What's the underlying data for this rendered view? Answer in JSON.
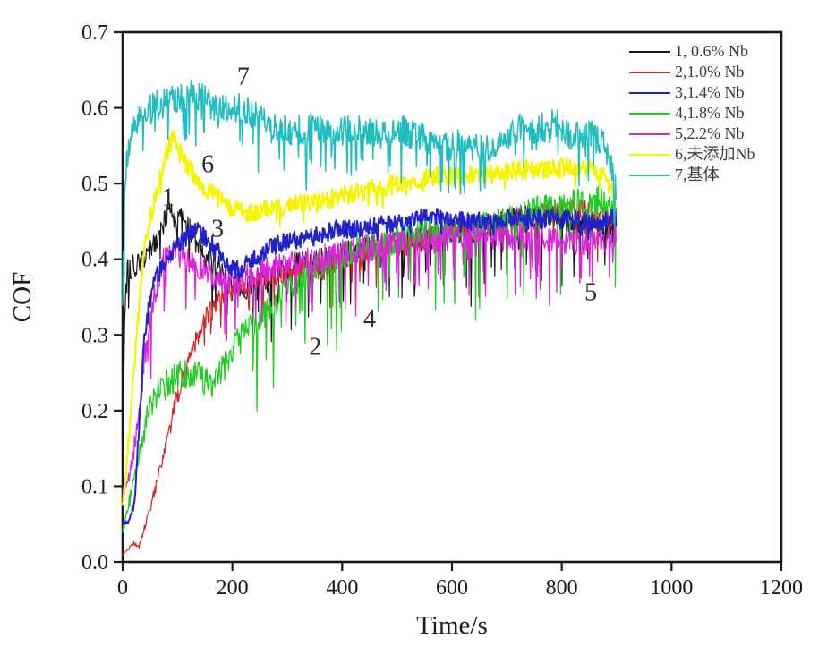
{
  "chart_data": {
    "type": "line",
    "title": "",
    "xlabel": "Time/s",
    "ylabel": "COF",
    "xlim": [
      0,
      1200
    ],
    "ylim": [
      0.0,
      0.7
    ],
    "x_ticks": [
      "0",
      "200",
      "400",
      "600",
      "800",
      "1000",
      "1200"
    ],
    "y_ticks": [
      "0.0",
      "0.1",
      "0.2",
      "0.3",
      "0.4",
      "0.5",
      "0.6",
      "0.7"
    ],
    "grid": false,
    "legend_position": "top-right-inside",
    "frame_color": "#1a1a1a",
    "background_color": "#ffffff",
    "time_end_s": 900,
    "series": [
      {
        "number": "1",
        "name": "1, 0.6% Nb",
        "color": "#1a1a1a",
        "annotation": {
          "text": "1",
          "t": 83,
          "cof": 0.471
        },
        "noise": {
          "amp": 0.018,
          "spike": 0.09,
          "spike_prob": 0.1,
          "seed": 101
        },
        "trend": [
          [
            0,
            0.08
          ],
          [
            3,
            0.3
          ],
          [
            8,
            0.385
          ],
          [
            20,
            0.395
          ],
          [
            40,
            0.4
          ],
          [
            60,
            0.425
          ],
          [
            75,
            0.45
          ],
          [
            90,
            0.46
          ],
          [
            105,
            0.455
          ],
          [
            120,
            0.44
          ],
          [
            140,
            0.42
          ],
          [
            160,
            0.4
          ],
          [
            180,
            0.385
          ],
          [
            200,
            0.37
          ],
          [
            220,
            0.365
          ],
          [
            240,
            0.37
          ],
          [
            270,
            0.38
          ],
          [
            300,
            0.39
          ],
          [
            340,
            0.395
          ],
          [
            380,
            0.4
          ],
          [
            420,
            0.41
          ],
          [
            460,
            0.415
          ],
          [
            500,
            0.42
          ],
          [
            540,
            0.425
          ],
          [
            580,
            0.43
          ],
          [
            620,
            0.435
          ],
          [
            660,
            0.44
          ],
          [
            700,
            0.45
          ],
          [
            740,
            0.455
          ],
          [
            780,
            0.46
          ],
          [
            820,
            0.45
          ],
          [
            850,
            0.445
          ],
          [
            880,
            0.44
          ],
          [
            900,
            0.43
          ]
        ]
      },
      {
        "number": "2",
        "name": "2,1.0% Nb",
        "color": "#d42525",
        "annotation": {
          "text": "2",
          "t": 351,
          "cof": 0.274
        },
        "noise": {
          "amp": 0.014,
          "spike": 0.06,
          "spike_prob": 0.06,
          "seed": 202
        },
        "trend": [
          [
            0,
            0.01
          ],
          [
            20,
            0.025
          ],
          [
            30,
            0.02
          ],
          [
            50,
            0.07
          ],
          [
            75,
            0.14
          ],
          [
            100,
            0.22
          ],
          [
            125,
            0.28
          ],
          [
            150,
            0.32
          ],
          [
            175,
            0.35
          ],
          [
            200,
            0.36
          ],
          [
            230,
            0.37
          ],
          [
            260,
            0.375
          ],
          [
            300,
            0.385
          ],
          [
            340,
            0.39
          ],
          [
            370,
            0.385
          ],
          [
            400,
            0.4
          ],
          [
            440,
            0.41
          ],
          [
            480,
            0.415
          ],
          [
            520,
            0.42
          ],
          [
            560,
            0.43
          ],
          [
            600,
            0.44
          ],
          [
            640,
            0.445
          ],
          [
            680,
            0.45
          ],
          [
            720,
            0.455
          ],
          [
            760,
            0.46
          ],
          [
            800,
            0.465
          ],
          [
            840,
            0.465
          ],
          [
            870,
            0.46
          ],
          [
            900,
            0.455
          ]
        ]
      },
      {
        "number": "3",
        "name": "3,1.4% Nb",
        "color": "#2222cc",
        "annotation": {
          "text": "3",
          "t": 173,
          "cof": 0.43
        },
        "noise": {
          "amp": 0.012,
          "spike": 0.015,
          "spike_prob": 0.05,
          "seed": 303
        },
        "trend": [
          [
            0,
            0.05
          ],
          [
            12,
            0.055
          ],
          [
            22,
            0.08
          ],
          [
            30,
            0.18
          ],
          [
            38,
            0.28
          ],
          [
            48,
            0.34
          ],
          [
            60,
            0.375
          ],
          [
            80,
            0.4
          ],
          [
            100,
            0.42
          ],
          [
            120,
            0.43
          ],
          [
            135,
            0.44
          ],
          [
            155,
            0.425
          ],
          [
            175,
            0.41
          ],
          [
            195,
            0.39
          ],
          [
            205,
            0.385
          ],
          [
            220,
            0.39
          ],
          [
            240,
            0.4
          ],
          [
            260,
            0.41
          ],
          [
            280,
            0.42
          ],
          [
            310,
            0.425
          ],
          [
            350,
            0.43
          ],
          [
            390,
            0.44
          ],
          [
            430,
            0.44
          ],
          [
            470,
            0.445
          ],
          [
            510,
            0.45
          ],
          [
            550,
            0.455
          ],
          [
            590,
            0.455
          ],
          [
            630,
            0.45
          ],
          [
            670,
            0.45
          ],
          [
            710,
            0.455
          ],
          [
            750,
            0.455
          ],
          [
            790,
            0.455
          ],
          [
            830,
            0.45
          ],
          [
            870,
            0.45
          ],
          [
            900,
            0.455
          ]
        ]
      },
      {
        "number": "4",
        "name": "4,1.8% Nb",
        "color": "#22cc22",
        "annotation": {
          "text": "4",
          "t": 450,
          "cof": 0.311
        },
        "noise": {
          "amp": 0.02,
          "spike": 0.12,
          "spike_prob": 0.1,
          "seed": 404
        },
        "trend": [
          [
            0,
            0.04
          ],
          [
            15,
            0.09
          ],
          [
            30,
            0.14
          ],
          [
            45,
            0.19
          ],
          [
            60,
            0.22
          ],
          [
            80,
            0.235
          ],
          [
            100,
            0.245
          ],
          [
            120,
            0.25
          ],
          [
            140,
            0.245
          ],
          [
            160,
            0.235
          ],
          [
            180,
            0.25
          ],
          [
            200,
            0.28
          ],
          [
            220,
            0.3
          ],
          [
            245,
            0.32
          ],
          [
            270,
            0.335
          ],
          [
            300,
            0.36
          ],
          [
            330,
            0.375
          ],
          [
            360,
            0.39
          ],
          [
            400,
            0.405
          ],
          [
            440,
            0.415
          ],
          [
            480,
            0.42
          ],
          [
            520,
            0.43
          ],
          [
            560,
            0.435
          ],
          [
            600,
            0.44
          ],
          [
            640,
            0.44
          ],
          [
            680,
            0.445
          ],
          [
            720,
            0.455
          ],
          [
            760,
            0.465
          ],
          [
            800,
            0.47
          ],
          [
            840,
            0.475
          ],
          [
            870,
            0.48
          ],
          [
            900,
            0.465
          ]
        ]
      },
      {
        "number": "5",
        "name": "5,2.2% Nb",
        "color": "#dd22dd",
        "annotation": {
          "text": "5",
          "t": 853,
          "cof": 0.346
        },
        "noise": {
          "amp": 0.018,
          "spike": 0.08,
          "spike_prob": 0.12,
          "seed": 505
        },
        "trend": [
          [
            0,
            0.09
          ],
          [
            15,
            0.12
          ],
          [
            30,
            0.2
          ],
          [
            45,
            0.3
          ],
          [
            60,
            0.36
          ],
          [
            75,
            0.4
          ],
          [
            95,
            0.41
          ],
          [
            115,
            0.4
          ],
          [
            140,
            0.39
          ],
          [
            170,
            0.375
          ],
          [
            200,
            0.37
          ],
          [
            240,
            0.38
          ],
          [
            280,
            0.39
          ],
          [
            320,
            0.395
          ],
          [
            360,
            0.4
          ],
          [
            400,
            0.41
          ],
          [
            440,
            0.415
          ],
          [
            480,
            0.42
          ],
          [
            520,
            0.425
          ],
          [
            560,
            0.425
          ],
          [
            600,
            0.43
          ],
          [
            640,
            0.43
          ],
          [
            680,
            0.43
          ],
          [
            720,
            0.43
          ],
          [
            760,
            0.43
          ],
          [
            800,
            0.425
          ],
          [
            840,
            0.42
          ],
          [
            870,
            0.425
          ],
          [
            900,
            0.43
          ]
        ]
      },
      {
        "number": "6",
        "name": "6,未添加Nb",
        "color": "#f5f500",
        "annotation": {
          "text": "6",
          "t": 155,
          "cof": 0.515
        },
        "noise": {
          "amp": 0.013,
          "spike": 0.02,
          "spike_prob": 0.05,
          "seed": 606
        },
        "trend": [
          [
            0,
            0.07
          ],
          [
            10,
            0.15
          ],
          [
            20,
            0.25
          ],
          [
            30,
            0.34
          ],
          [
            40,
            0.42
          ],
          [
            55,
            0.47
          ],
          [
            70,
            0.51
          ],
          [
            85,
            0.55
          ],
          [
            95,
            0.56
          ],
          [
            110,
            0.535
          ],
          [
            130,
            0.51
          ],
          [
            150,
            0.495
          ],
          [
            175,
            0.48
          ],
          [
            200,
            0.468
          ],
          [
            230,
            0.462
          ],
          [
            260,
            0.465
          ],
          [
            300,
            0.47
          ],
          [
            340,
            0.475
          ],
          [
            380,
            0.48
          ],
          [
            420,
            0.487
          ],
          [
            460,
            0.492
          ],
          [
            500,
            0.5
          ],
          [
            540,
            0.505
          ],
          [
            580,
            0.51
          ],
          [
            620,
            0.51
          ],
          [
            660,
            0.512
          ],
          [
            700,
            0.515
          ],
          [
            740,
            0.52
          ],
          [
            780,
            0.52
          ],
          [
            820,
            0.522
          ],
          [
            850,
            0.52
          ],
          [
            880,
            0.51
          ],
          [
            900,
            0.47
          ]
        ]
      },
      {
        "number": "7",
        "name": "7,基体",
        "color": "#1fbdbd",
        "annotation": {
          "text": "7",
          "t": 220,
          "cof": 0.631
        },
        "noise": {
          "amp": 0.02,
          "spike": 0.07,
          "spike_prob": 0.12,
          "seed": 707
        },
        "trend": [
          [
            0,
            0.35
          ],
          [
            4,
            0.5
          ],
          [
            10,
            0.55
          ],
          [
            20,
            0.57
          ],
          [
            35,
            0.59
          ],
          [
            55,
            0.6
          ],
          [
            80,
            0.61
          ],
          [
            110,
            0.615
          ],
          [
            130,
            0.62
          ],
          [
            150,
            0.61
          ],
          [
            170,
            0.6
          ],
          [
            190,
            0.6
          ],
          [
            210,
            0.6
          ],
          [
            230,
            0.595
          ],
          [
            250,
            0.585
          ],
          [
            270,
            0.58
          ],
          [
            290,
            0.575
          ],
          [
            310,
            0.57
          ],
          [
            330,
            0.572
          ],
          [
            350,
            0.576
          ],
          [
            370,
            0.57
          ],
          [
            390,
            0.565
          ],
          [
            410,
            0.572
          ],
          [
            430,
            0.575
          ],
          [
            450,
            0.57
          ],
          [
            470,
            0.565
          ],
          [
            490,
            0.567
          ],
          [
            510,
            0.57
          ],
          [
            530,
            0.565
          ],
          [
            550,
            0.558
          ],
          [
            570,
            0.555
          ],
          [
            590,
            0.55
          ],
          [
            610,
            0.553
          ],
          [
            630,
            0.55
          ],
          [
            650,
            0.545
          ],
          [
            670,
            0.55
          ],
          [
            690,
            0.555
          ],
          [
            710,
            0.57
          ],
          [
            730,
            0.578
          ],
          [
            750,
            0.57
          ],
          [
            770,
            0.575
          ],
          [
            790,
            0.58
          ],
          [
            810,
            0.565
          ],
          [
            830,
            0.562
          ],
          [
            850,
            0.57
          ],
          [
            870,
            0.555
          ],
          [
            885,
            0.54
          ],
          [
            900,
            0.49
          ]
        ]
      }
    ]
  }
}
